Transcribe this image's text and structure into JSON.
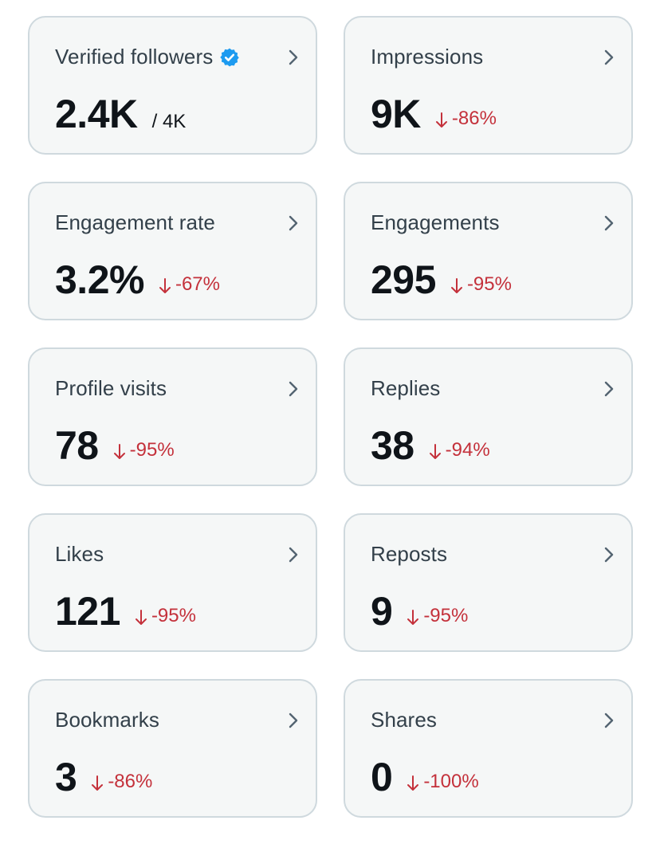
{
  "colors": {
    "negative": "#c4313b",
    "verified": "#1d9bf0"
  },
  "cards": [
    {
      "key": "verified-followers",
      "label": "Verified followers",
      "value": "2.4K",
      "of": "/ 4K",
      "verified": true
    },
    {
      "key": "impressions",
      "label": "Impressions",
      "value": "9K",
      "change": "-86%"
    },
    {
      "key": "engagement-rate",
      "label": "Engagement rate",
      "value": "3.2%",
      "change": "-67%"
    },
    {
      "key": "engagements",
      "label": "Engagements",
      "value": "295",
      "change": "-95%"
    },
    {
      "key": "profile-visits",
      "label": "Profile visits",
      "value": "78",
      "change": "-95%"
    },
    {
      "key": "replies",
      "label": "Replies",
      "value": "38",
      "change": "-94%"
    },
    {
      "key": "likes",
      "label": "Likes",
      "value": "121",
      "change": "-95%"
    },
    {
      "key": "reposts",
      "label": "Reposts",
      "value": "9",
      "change": "-95%"
    },
    {
      "key": "bookmarks",
      "label": "Bookmarks",
      "value": "3",
      "change": "-86%"
    },
    {
      "key": "shares",
      "label": "Shares",
      "value": "0",
      "change": "-100%"
    }
  ]
}
